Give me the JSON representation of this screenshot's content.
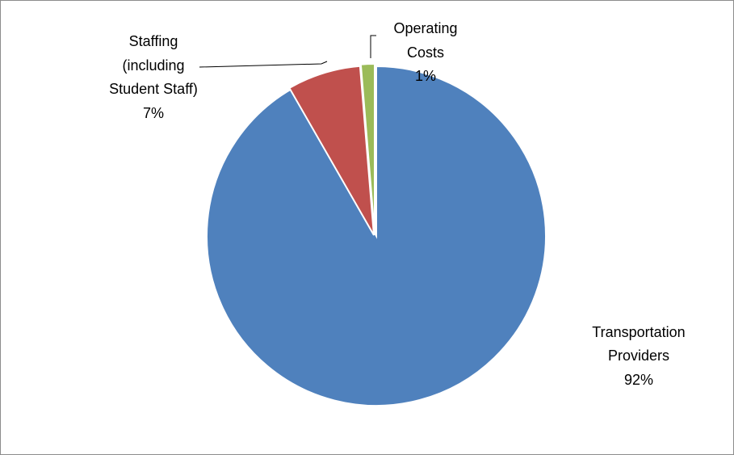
{
  "chart_data": {
    "type": "pie",
    "title": "",
    "slices": [
      {
        "name_lines": [
          "Transportation",
          "Providers"
        ],
        "pct_label": "92%",
        "value": 91.7,
        "color": "#4f81bd"
      },
      {
        "name_lines": [
          "Staffing",
          "(including",
          "Student Staff)"
        ],
        "pct_label": "7%",
        "value": 7.0,
        "color": "#c0504d"
      },
      {
        "name_lines": [
          "Operating",
          "Costs"
        ],
        "pct_label": "1%",
        "value": 1.3,
        "color": "#9bbb59"
      }
    ],
    "legend": "none",
    "data_labels": "category name and percentage"
  }
}
